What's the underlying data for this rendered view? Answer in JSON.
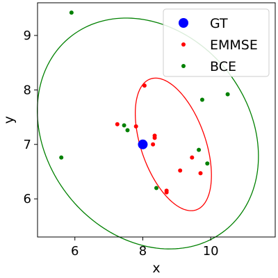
{
  "chart_data": {
    "type": "scatter",
    "xlabel": "x",
    "ylabel": "y",
    "xlim": [
      4.9,
      11.9
    ],
    "ylim": [
      5.3,
      9.6
    ],
    "xticks": [
      6,
      8,
      10
    ],
    "yticks": [
      6,
      7,
      8,
      9
    ],
    "grid": false,
    "legend": {
      "placement": "top-right"
    },
    "series": [
      {
        "name": "GT",
        "color": "#0000ff",
        "marker": "large-circle",
        "points": [
          {
            "x": 8.0,
            "y": 7.0
          }
        ]
      },
      {
        "name": "EMMSE",
        "color": "#ff0000",
        "marker": "small-circle",
        "points": [
          {
            "x": 8.05,
            "y": 8.08
          },
          {
            "x": 7.25,
            "y": 7.37
          },
          {
            "x": 7.8,
            "y": 7.33
          },
          {
            "x": 8.35,
            "y": 7.16
          },
          {
            "x": 8.35,
            "y": 7.12
          },
          {
            "x": 8.3,
            "y": 7.0
          },
          {
            "x": 9.45,
            "y": 6.76
          },
          {
            "x": 9.1,
            "y": 6.52
          },
          {
            "x": 9.7,
            "y": 6.47
          },
          {
            "x": 8.7,
            "y": 6.15
          },
          {
            "x": 8.7,
            "y": 6.12
          }
        ]
      },
      {
        "name": "BCE",
        "color": "#008000",
        "marker": "small-circle",
        "points": [
          {
            "x": 5.9,
            "y": 9.42
          },
          {
            "x": 10.5,
            "y": 7.92
          },
          {
            "x": 9.75,
            "y": 7.82
          },
          {
            "x": 7.45,
            "y": 7.35
          },
          {
            "x": 7.55,
            "y": 7.26
          },
          {
            "x": 9.65,
            "y": 6.9
          },
          {
            "x": 9.9,
            "y": 6.65
          },
          {
            "x": 5.6,
            "y": 6.76
          },
          {
            "x": 8.4,
            "y": 6.2
          }
        ]
      }
    ],
    "ellipses": [
      {
        "series": "EMMSE",
        "color": "#ff0000",
        "center": [
          8.9,
          7.0
        ],
        "semi_axes": [
          1.42,
          0.85
        ],
        "angle_deg": -50
      },
      {
        "series": "BCE",
        "color": "#008000",
        "center": [
          8.15,
          7.2
        ],
        "semi_axes": [
          3.3,
          2.05
        ],
        "angle_deg": -12
      }
    ]
  }
}
